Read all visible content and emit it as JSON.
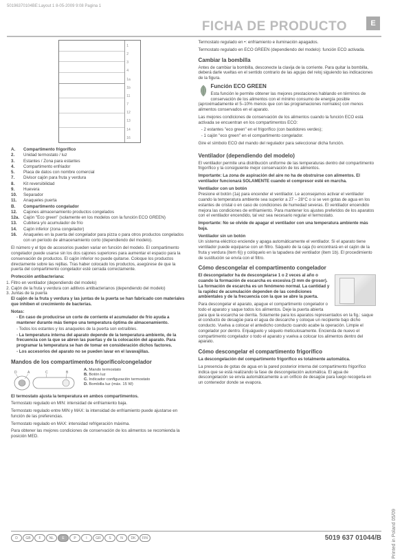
{
  "meta": {
    "spec_line": "50196370104BE:Layout 1   8-05-2009  9:08  Pagina 1"
  },
  "header": {
    "title": "FICHA DE PRODUCTO",
    "lang_badge": "E"
  },
  "diagram_labels": [
    "1",
    "2",
    "3",
    "4",
    "1a",
    "1b",
    "11",
    "7",
    "12",
    "13",
    "14",
    "16"
  ],
  "legend": [
    {
      "k": "A.",
      "t": "Compartimento frigorífico",
      "b": true
    },
    {
      "k": "2.",
      "t": "Unidad termostato / luz"
    },
    {
      "k": "3.",
      "t": "Estantes / Zona para estantes"
    },
    {
      "k": "4.",
      "t": "Compartimento enfriador"
    },
    {
      "k": "5.",
      "t": "Placa de datos con nombre comercial"
    },
    {
      "k": "7.",
      "t": "Divisor cajón para fruta y verdura"
    },
    {
      "k": "8.",
      "t": "Kit reversibilidad"
    },
    {
      "k": "9.",
      "t": "Huevera"
    },
    {
      "k": "10.",
      "t": "Separador"
    },
    {
      "k": "11.",
      "t": "Anaqueles puerta"
    },
    {
      "k": "B.",
      "t": "Compartimento congelador",
      "b": true
    },
    {
      "k": "12.",
      "t": "Cajones almacenamiento productos congelados"
    },
    {
      "k": "12a.",
      "t": "Cajón \"Eco green\" (solamente en los modelos con la función ECO GREEN)"
    },
    {
      "k": "13.",
      "t": "Cubitera y/o acumulador de frío"
    },
    {
      "k": "14.",
      "t": "Cajón inferior (zona congelador)"
    },
    {
      "k": "16.",
      "t": "Anaqueles en la puerta del congelador para pizza o para otros productos congelados con un período de almacenamiento corto (dependiendo del modelo)."
    }
  ],
  "body": {
    "p1": "El número y el tipo de accesorios pueden variar en función del modelo. El compartimento congelador puede usarse sin los dos cajones superiores para aumentar el espacio para la conservación de productos. El cajón inferior no puede quitarse. Coloque los productos directamente sobre las rejillas. Tras haber colocado los productos, asegúrese de que la puerta del compartimento congelador esté cerrada correctamente.",
    "anti_head": "Protección antibacteriana:",
    "anti": [
      "Filtro en ventilador (dependiendo del modelo)",
      "Cajón de la fruta y verdura con aditivos antibacterianos (dependiendo del modelo)",
      "Juntas de la puerta"
    ],
    "anti_p": "El cajón de la fruta y verdura y las juntas de la puerta se han fabricado con materiales que inhiben el crecimiento de bacterias.",
    "notas_h": "Notas:",
    "notas": [
      "En caso de producirse un corte de corriente el acumulador de frío ayuda a mantener durante más tiempo una temperatura óptima de almacenamiento.",
      "Todos los estantes y los anaqueles de la puerta son extraíbles.",
      "La temperatura interna del aparato depende de la temperatura ambiente, de la frecuencia con la que se abren las puertas y de la colocación del aparato. Para programar la temperatura se han de tomar en consideración dichos factores.",
      "Los accesorios del aparato no se pueden lavar en el lavavajillas."
    ],
    "mandos_h": "Mandos de los compartimentos frigorífico/congelador",
    "mandos_leg": [
      {
        "k": "A.",
        "t": "Mando termostato"
      },
      {
        "k": "B.",
        "t": "Botón luz"
      },
      {
        "k": "C.",
        "t": "Indicador configuración termostato"
      },
      {
        "k": "D.",
        "t": "Bombilla luz (máx. 15 W)"
      }
    ],
    "term_p1": "El termostato ajusta la temperatura en ambos compartimentos.",
    "term_p2": "Termostato regulado en MIN: intensidad de enfriamiento baja.",
    "term_p3": "Termostato regulado entre MIN y MAX: la intensidad de enfriamiento puede ajustarse en función de las preferencias.",
    "term_p4": "Termostato regulado en MAX: intensidad refrigeración máxima.",
    "term_p5": "Para obtener las mejores condiciones de conservación de los alimentos se recomienda la posición MED."
  },
  "col2": {
    "top1": "Termostato regulado en •: enfriamiento e iluminación apagados.",
    "top2": "Termostato regulado en ECO GREEN (dependiendo del modelo): función ECO activada.",
    "bomb_h": "Cambiar la bombilla",
    "bomb_p": "Antes de cambiar la bombilla, desconecte la clavija de la corriente. Para quitar la bombilla, deberá darle vueltas en el sentido contrario de las agujas del reloj siguiendo las indicaciones de la figura.",
    "eco_h": "Función ECO GREEN",
    "eco_p1": "Esta función le permite obtener las mejores prestaciones hablando en términos de conservación de los alimentos con el mínimo consumo de energía posible (aproximadamente el 5–10% menos que con las programaciones normales) con menos alimentos conservados en el aparato.",
    "eco_p2": "Las mejores condiciones de conservación de los alimentos cuando la función ECO está activada se encuentran en los compartimentos ECO:",
    "eco_li1": "2 estantes \"eco green\" en el frigorífico (con bastidores verdes);",
    "eco_li2": "1 cajón \"eco green\" en el compartimento congelador.",
    "eco_p3": "Gire el símbolo ECO del mando del regulador para seleccionar dicha función.",
    "vent_h": "Ventilador (dependiendo del modelo)",
    "vent_p1": "El ventilador permite una distribución uniforme de las temperaturas dentro del compartimento frigorífico y la consiguiente mejor conservación de los alimentos.",
    "vent_imp": "Importante: La zona de aspiración del aire no ha de obstruirse con alimentos. El ventilador funcionará SOLAMENTE cuando el compresor esté en marcha.",
    "vent_sub1": "Ventilador con un botón",
    "vent_p2": "Presione el botón (1a) para encender el ventilador. Le aconsejamos activar el ventilador cuando la temperatura ambiente sea superior a 27 – 28°C o si se ven gotas de agua en los estantes de cristal o en caso de condiciones de humedad severas. El ventilador encendido mejora las condiciones de enfriamiento. Para mantener los ajustes preferidos de los aparatos con el ventilador encendido, tal vez sea necesario regular el termostato.",
    "vent_imp2": "Importante: No se olvide de apagar el ventilador con una temperatura ambiente más baja.",
    "vent_sub2": "Ventilador sin un botón",
    "vent_p3": "Un sistema eléctrico enciende y apaga automáticamente el ventilador. Si el aparato tiene ventilador puede equiparse con un filtro. Sáquelo de la caja (lo encontrará en el cajón de la fruta y verdura (item 6)) y colóquelo en la tapadera del ventilador (item 1b). El procedimiento de sustitución se envía con el filtro.",
    "dcong_h": "Cómo descongelar el compartimento congelador",
    "dcong_p1": "El descongelador ha de descongelarse 1 o 2 veces al año o cuando la formación de escarcha es excesiva (3 mm de grosor). La formación de escarcha es un fenómeno normal. La cantidad y la rapidez de acumulación dependen de las condiciones ambientales y de la frecuencia con la que se abre la puerta.",
    "dcong_p2": "Para descongelar el aparato, apague el compartimento congelador o todo el aparato y saque todos los alimentos. Deje la puerta abierta para que la escarcha se derrita. Solamente para los aparatos representados en la fig.: saque el conducto de desagüe para el agua de descarche y coloque un recipiente bajo dicho conducto. Vuelva a colocar el antedicho conducto cuando acabe la operación. Limpie el congelador por dentro. Enjuáguelo y séquelo meticulosamente. Encienda de nuevo el compartimento congelador o todo el aparato y vuelva a colocar los alimentos dentro del aparato.",
    "dfrig_h": "Cómo descongelar el compartimento frigorífico",
    "dfrig_p1": "La descongelación del compartimento frigorífico es totalmente automática.",
    "dfrig_p2": "La presencia de gotas de agua en la pared posterior interna del compartimento frigorífico indica que se está realizando la fase de descongelación automática. El agua de descongelación se envía automáticamente a un orificio de desagüe para luego recogerla en un contenedor donde se evapora."
  },
  "footer": {
    "flags": [
      "D",
      "GB",
      "F",
      "NL",
      "E",
      "P",
      "I",
      "GR",
      "S",
      "N",
      "DK",
      "FIN"
    ],
    "active_flag": "E",
    "docnum": "5019 637 01044/B",
    "side": "Printed in Poland    05/09"
  }
}
